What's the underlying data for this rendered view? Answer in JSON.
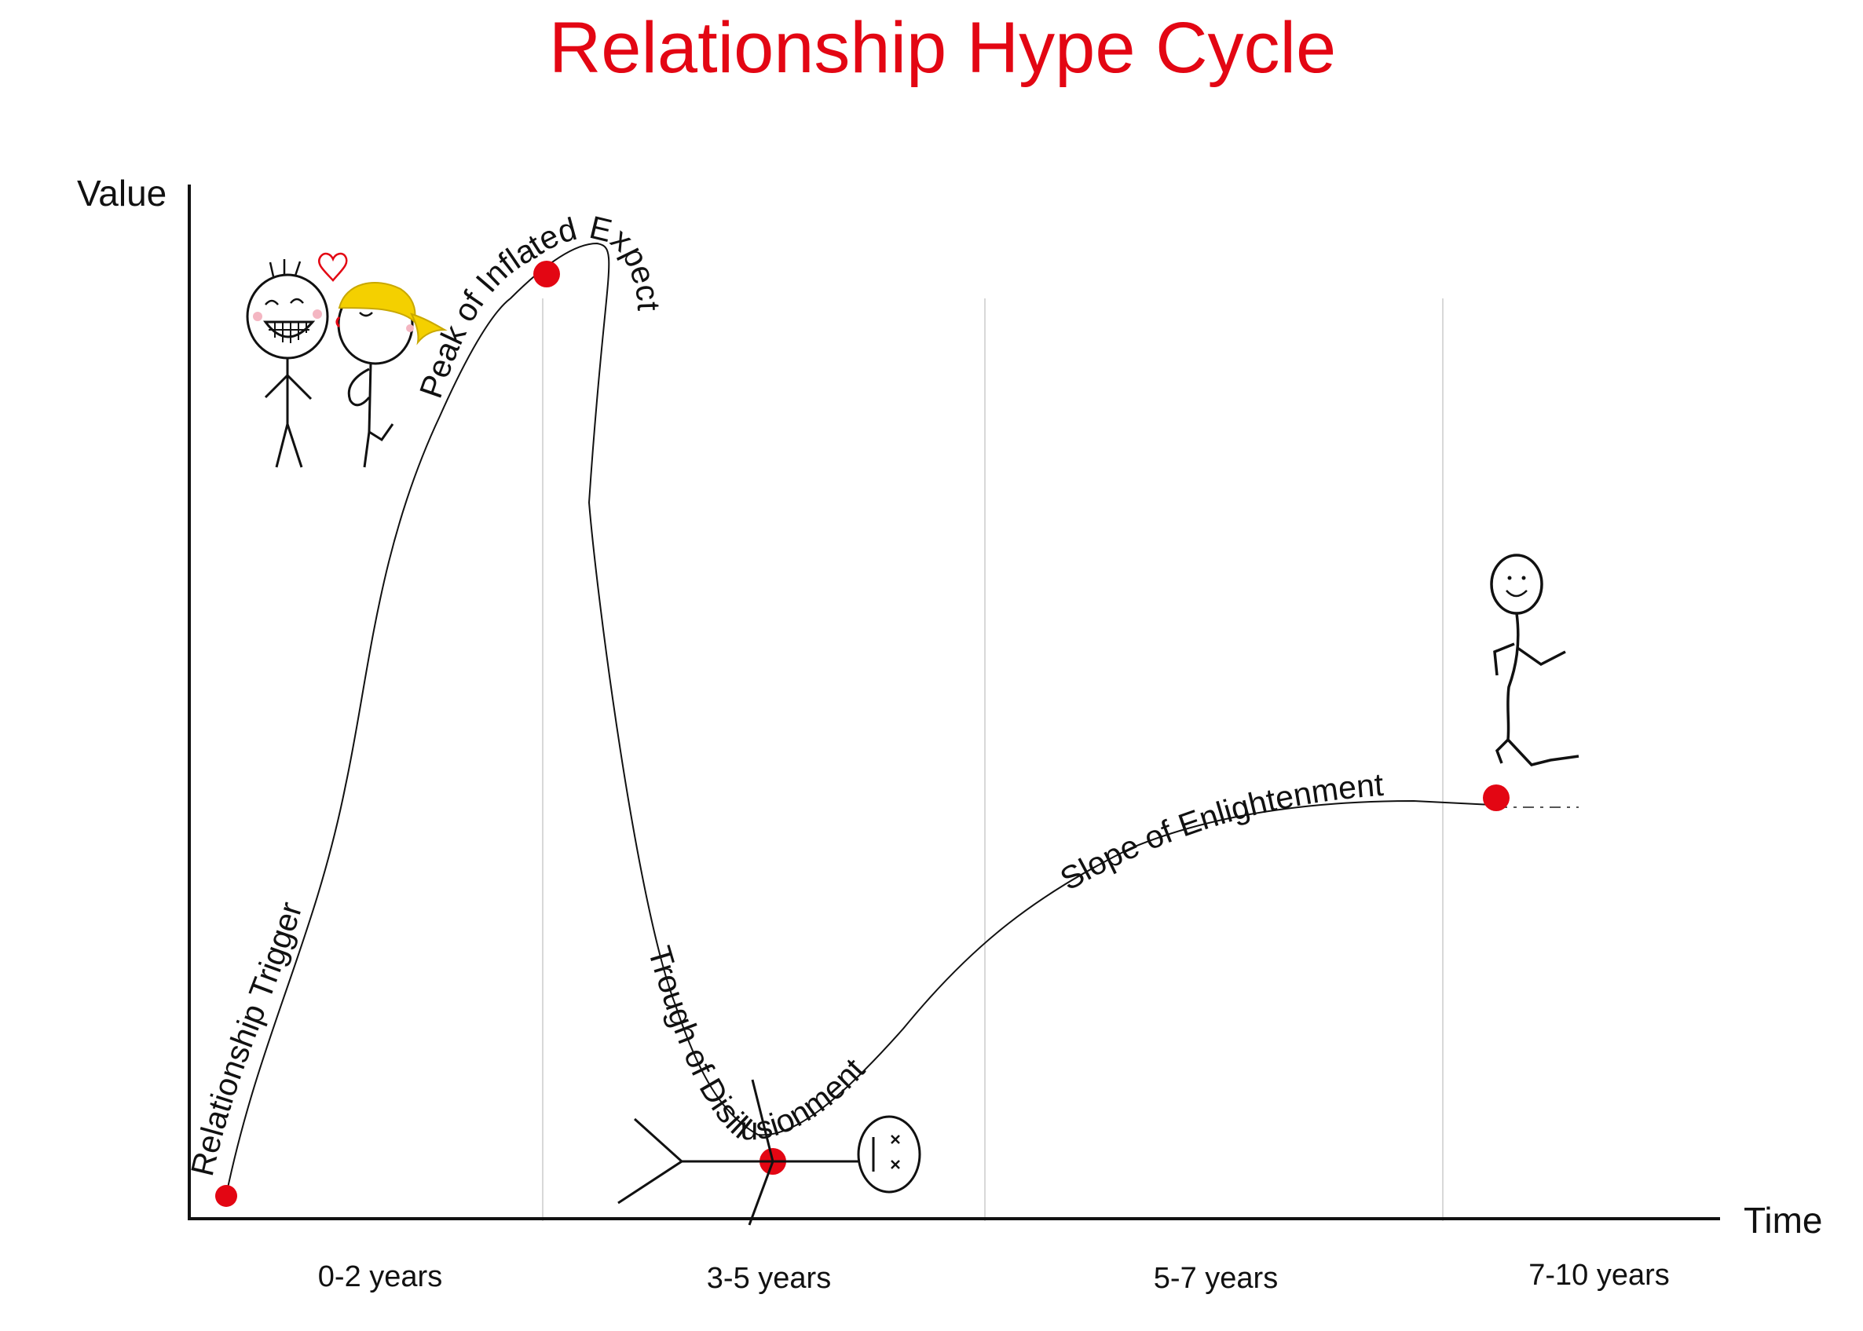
{
  "title": "Relationship Hype Cycle",
  "axes": {
    "y_label": "Value",
    "x_label": "Time"
  },
  "periods": [
    "0-2 years",
    "3-5 years",
    "5-7 years",
    "7-10 years"
  ],
  "phases": [
    "Relationship Trigger",
    "Peak of Inflated Expectations",
    "Trough of Disillusionment",
    "Slope of Enlightenment"
  ],
  "figures": [
    "kissing-couple",
    "collapsed-stick-figure",
    "running-stick-figure"
  ],
  "colors": {
    "title": "#e30613",
    "marker": "#e30613",
    "hair": "#f4d000",
    "grid": "#d8d8d8",
    "ink": "#111111"
  }
}
